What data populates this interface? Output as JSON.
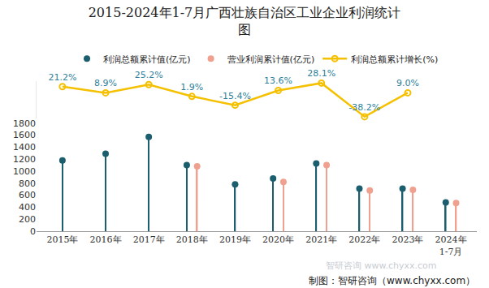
{
  "chart_data": {
    "type": "lollipop",
    "title": "2015-2024年1-7月广西壮族自治区工业企业利润统计\n图",
    "categories": [
      "2015年",
      "2016年",
      "2017年",
      "2018年",
      "2019年",
      "2020年",
      "2021年",
      "2022年",
      "2023年",
      "2024年\n1-7月"
    ],
    "series": [
      {
        "name": "利润总额累计值(亿元)",
        "type": "lollipop",
        "color": "#1b5f6f",
        "marker": "circle",
        "values": [
          1180,
          1290,
          1570,
          1100,
          780,
          880,
          1130,
          710,
          710,
          480
        ]
      },
      {
        "name": "营业利润累计值(亿元)",
        "type": "lollipop",
        "color": "#f0a08e",
        "marker": "circle",
        "values": [
          null,
          null,
          null,
          1080,
          null,
          820,
          1100,
          680,
          690,
          470
        ]
      },
      {
        "name": "利润总额累计增长(%)",
        "type": "line",
        "axis": "y2",
        "color": "#f5c000",
        "marker": "circle-open",
        "data_labels": true,
        "values": [
          21.2,
          8.9,
          25.2,
          1.9,
          -15.4,
          13.6,
          28.1,
          -38.2,
          9.0,
          null
        ],
        "value_labels": [
          "21.2%",
          "8.9%",
          "25.2%",
          "1.9%",
          "-15.4%",
          "13.6%",
          "28.1%",
          "-38.2%",
          "9.0%",
          null
        ]
      }
    ],
    "ylim": [
      0,
      1800
    ],
    "yticks": [
      0,
      200,
      400,
      600,
      800,
      1000,
      1200,
      1400,
      1600,
      1800
    ],
    "y2lim": [
      -42,
      32
    ],
    "y2ticks": [],
    "grid": false,
    "legend": "top",
    "annotations": [
      "智研咨询 www.chyxx.com",
      "制图：智研咨询（www.chyxx.com）"
    ]
  }
}
